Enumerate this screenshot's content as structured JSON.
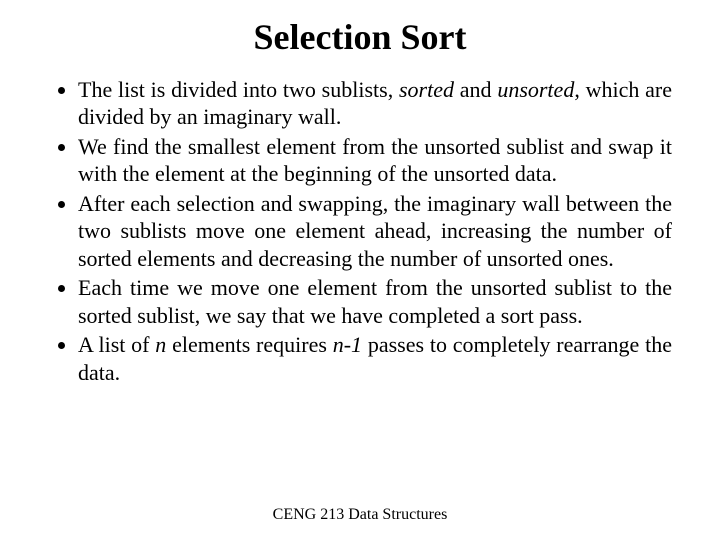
{
  "title": "Selection Sort",
  "bullets": [
    {
      "pre": "The list is divided into two sublists, ",
      "it1": "sorted",
      "mid": " and ",
      "it2": "unsorted",
      "post": ", which are divided by an imaginary wall."
    },
    {
      "text": "We find the smallest element from the unsorted sublist and swap it with the element at the beginning of the unsorted data."
    },
    {
      "text": "After each selection and swapping, the imaginary wall between the two sublists move one element ahead, increasing the number of sorted elements and decreasing the number of unsorted ones."
    },
    {
      "text": "Each time we move one element from the unsorted sublist to the sorted sublist, we say that we have completed a sort pass."
    },
    {
      "pre": "A list of ",
      "it1": "n",
      "mid": " elements requires ",
      "it2": "n-1",
      "post": " passes to completely rearrange the data."
    }
  ],
  "footer": "CENG 213 Data Structures"
}
